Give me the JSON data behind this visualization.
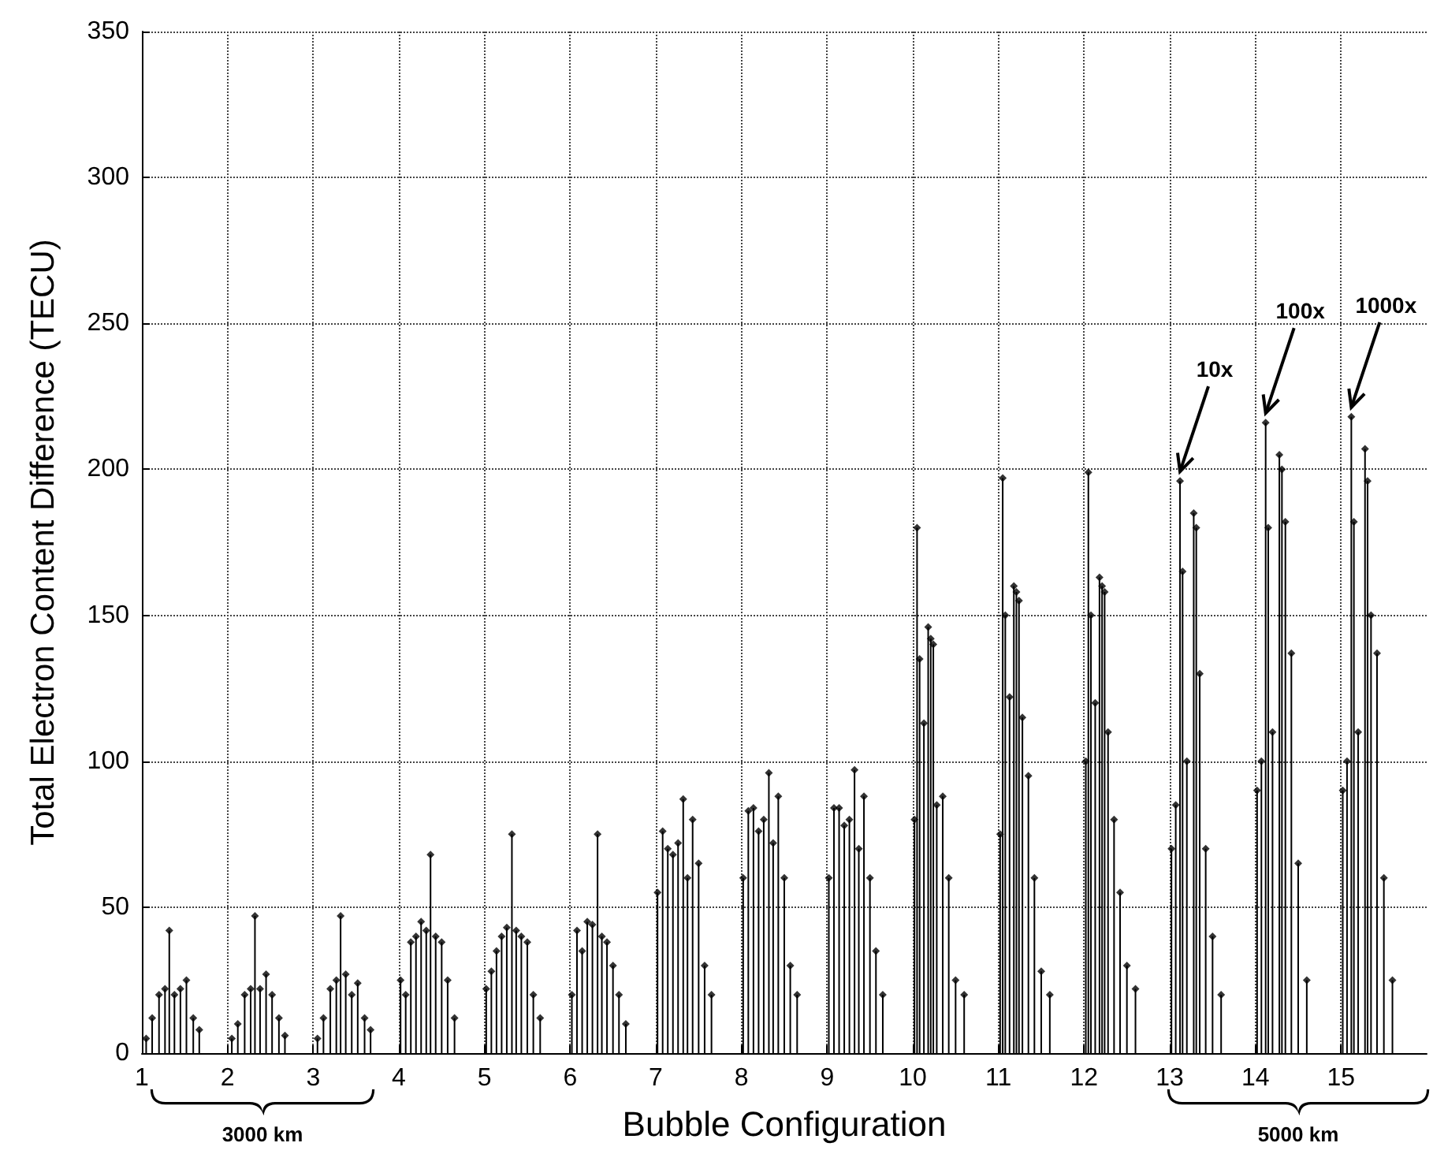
{
  "chart_data": {
    "type": "lollipop",
    "xlabel": "Bubble Configuration",
    "ylabel": "Total Electron Content Difference (TECU)",
    "xlim": [
      1,
      16
    ],
    "xticks": [
      1,
      2,
      3,
      4,
      5,
      6,
      7,
      8,
      9,
      10,
      11,
      12,
      13,
      14,
      15
    ],
    "ylim": [
      0,
      350
    ],
    "yticks": [
      0,
      50,
      100,
      150,
      200,
      250,
      300,
      350
    ],
    "grid": true,
    "marker": "diamond",
    "series": [
      {
        "color": "#000000",
        "x": [
          1.05,
          1.12,
          1.2,
          1.27,
          1.32,
          1.38,
          1.45,
          1.52,
          1.6,
          1.67,
          2.05,
          2.12,
          2.2,
          2.27,
          2.32,
          2.38,
          2.45,
          2.52,
          2.6,
          2.67,
          3.05,
          3.12,
          3.2,
          3.27,
          3.32,
          3.38,
          3.45,
          3.52,
          3.6,
          3.67,
          4.02,
          4.08,
          4.14,
          4.2,
          4.26,
          4.32,
          4.37,
          4.43,
          4.5,
          4.57,
          4.65,
          5.02,
          5.08,
          5.14,
          5.2,
          5.26,
          5.32,
          5.37,
          5.43,
          5.5,
          5.57,
          5.65,
          6.02,
          6.08,
          6.14,
          6.2,
          6.26,
          6.32,
          6.37,
          6.43,
          6.5,
          6.57,
          6.65,
          7.02,
          7.08,
          7.14,
          7.2,
          7.26,
          7.32,
          7.37,
          7.43,
          7.5,
          7.57,
          7.65,
          8.02,
          8.08,
          8.14,
          8.2,
          8.26,
          8.32,
          8.37,
          8.43,
          8.5,
          8.57,
          8.65,
          9.02,
          9.08,
          9.14,
          9.2,
          9.26,
          9.32,
          9.37,
          9.43,
          9.5,
          9.57,
          9.65,
          10.02,
          10.05,
          10.08,
          10.13,
          10.18,
          10.21,
          10.24,
          10.28,
          10.35,
          10.42,
          10.5,
          10.6,
          11.02,
          11.05,
          11.08,
          11.13,
          11.18,
          11.21,
          11.24,
          11.28,
          11.35,
          11.42,
          11.5,
          11.6,
          12.02,
          12.05,
          12.08,
          12.13,
          12.18,
          12.21,
          12.24,
          12.28,
          12.35,
          12.42,
          12.5,
          12.6,
          13.02,
          13.07,
          13.12,
          13.15,
          13.2,
          13.28,
          13.31,
          13.35,
          13.42,
          13.5,
          13.6,
          14.02,
          14.07,
          14.12,
          14.15,
          14.2,
          14.28,
          14.31,
          14.35,
          14.42,
          14.5,
          14.6,
          15.02,
          15.07,
          15.12,
          15.15,
          15.2,
          15.28,
          15.31,
          15.35,
          15.42,
          15.5,
          15.6
        ],
        "values": [
          5,
          12,
          20,
          22,
          42,
          20,
          22,
          25,
          12,
          8,
          5,
          10,
          20,
          22,
          47,
          22,
          27,
          20,
          12,
          6,
          5,
          12,
          22,
          25,
          47,
          27,
          20,
          24,
          12,
          8,
          25,
          20,
          38,
          40,
          45,
          42,
          68,
          40,
          38,
          25,
          12,
          22,
          28,
          35,
          40,
          43,
          75,
          42,
          40,
          38,
          20,
          12,
          20,
          42,
          35,
          45,
          44,
          75,
          40,
          38,
          30,
          20,
          10,
          55,
          76,
          70,
          68,
          72,
          87,
          60,
          80,
          65,
          30,
          20,
          60,
          83,
          84,
          76,
          80,
          96,
          72,
          88,
          60,
          30,
          20,
          60,
          84,
          84,
          78,
          80,
          97,
          70,
          88,
          60,
          35,
          20,
          80,
          180,
          135,
          113,
          146,
          142,
          140,
          85,
          88,
          60,
          25,
          20,
          75,
          197,
          150,
          122,
          160,
          158,
          155,
          115,
          95,
          60,
          28,
          20,
          100,
          199,
          150,
          120,
          163,
          160,
          158,
          110,
          80,
          55,
          30,
          22,
          70,
          85,
          196,
          165,
          100,
          185,
          180,
          130,
          70,
          40,
          20,
          90,
          100,
          216,
          180,
          110,
          205,
          200,
          182,
          137,
          65,
          25,
          90,
          100,
          218,
          182,
          110,
          207,
          196,
          150,
          137,
          60,
          25
        ]
      }
    ],
    "annotations": [
      {
        "text": "10x",
        "x": 13.12,
        "y": 196
      },
      {
        "text": "100x",
        "x": 14.12,
        "y": 216
      },
      {
        "text": "1000x",
        "x": 15.12,
        "y": 218
      },
      "3000 km",
      "5000 km"
    ]
  }
}
